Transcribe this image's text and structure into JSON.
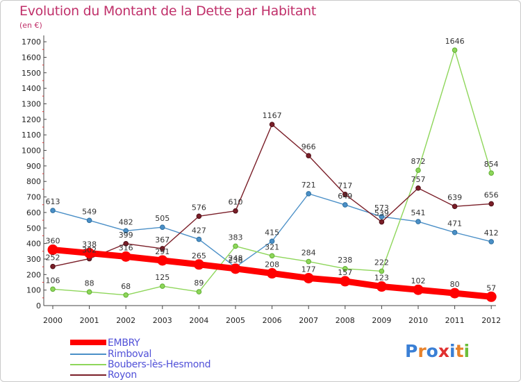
{
  "header": {
    "title": "Evolution du Montant de la Dette par Habitant",
    "subtitle": "(en €)"
  },
  "brand": {
    "letters": [
      "P",
      "r",
      "o",
      "x",
      "i",
      "t",
      "i"
    ],
    "colors": [
      "#3a7fd5",
      "#e8822a",
      "#3a7fd5",
      "#e03030",
      "#3a7fd5",
      "#e8822a",
      "#6cbf3a"
    ]
  },
  "colors": {
    "embry": "#ff0000",
    "rimboval": "#4a8fc7",
    "boubers": "#8ed65a",
    "royon": "#7a1e28",
    "title": "#c0306a",
    "legend_text": "#5050d8",
    "axis": "#444444"
  },
  "chart_data": {
    "type": "line",
    "title": "Evolution du Montant de la Dette par Habitant",
    "subtitle": "(en €)",
    "xlabel": "",
    "ylabel": "",
    "x": [
      "2000",
      "2001",
      "2002",
      "2003",
      "2004",
      "2005",
      "2006",
      "2007",
      "2008",
      "2009",
      "2010",
      "2011",
      "2012"
    ],
    "yticks": [
      0,
      100,
      200,
      300,
      400,
      500,
      600,
      700,
      800,
      900,
      1000,
      1100,
      1200,
      1300,
      1400,
      1500,
      1600,
      1700
    ],
    "ylim": [
      0,
      1700
    ],
    "grid": false,
    "legend_position": "bottom-left",
    "series": [
      {
        "name": "EMBRY",
        "values": [
          360,
          338,
          316,
          291,
          265,
          238,
          208,
          177,
          157,
          123,
          102,
          80,
          57
        ]
      },
      {
        "name": "Rimboval",
        "values": [
          613,
          549,
          482,
          505,
          427,
          248,
          415,
          721,
          649,
          573,
          541,
          471,
          412
        ]
      },
      {
        "name": "Boubers-lès-Hesmond",
        "values": [
          106,
          88,
          68,
          125,
          89,
          383,
          321,
          284,
          238,
          222,
          872,
          1646,
          854
        ]
      },
      {
        "name": "Royon",
        "values": [
          252,
          302,
          399,
          367,
          576,
          610,
          1167,
          966,
          717,
          539,
          757,
          639,
          656
        ]
      }
    ]
  }
}
